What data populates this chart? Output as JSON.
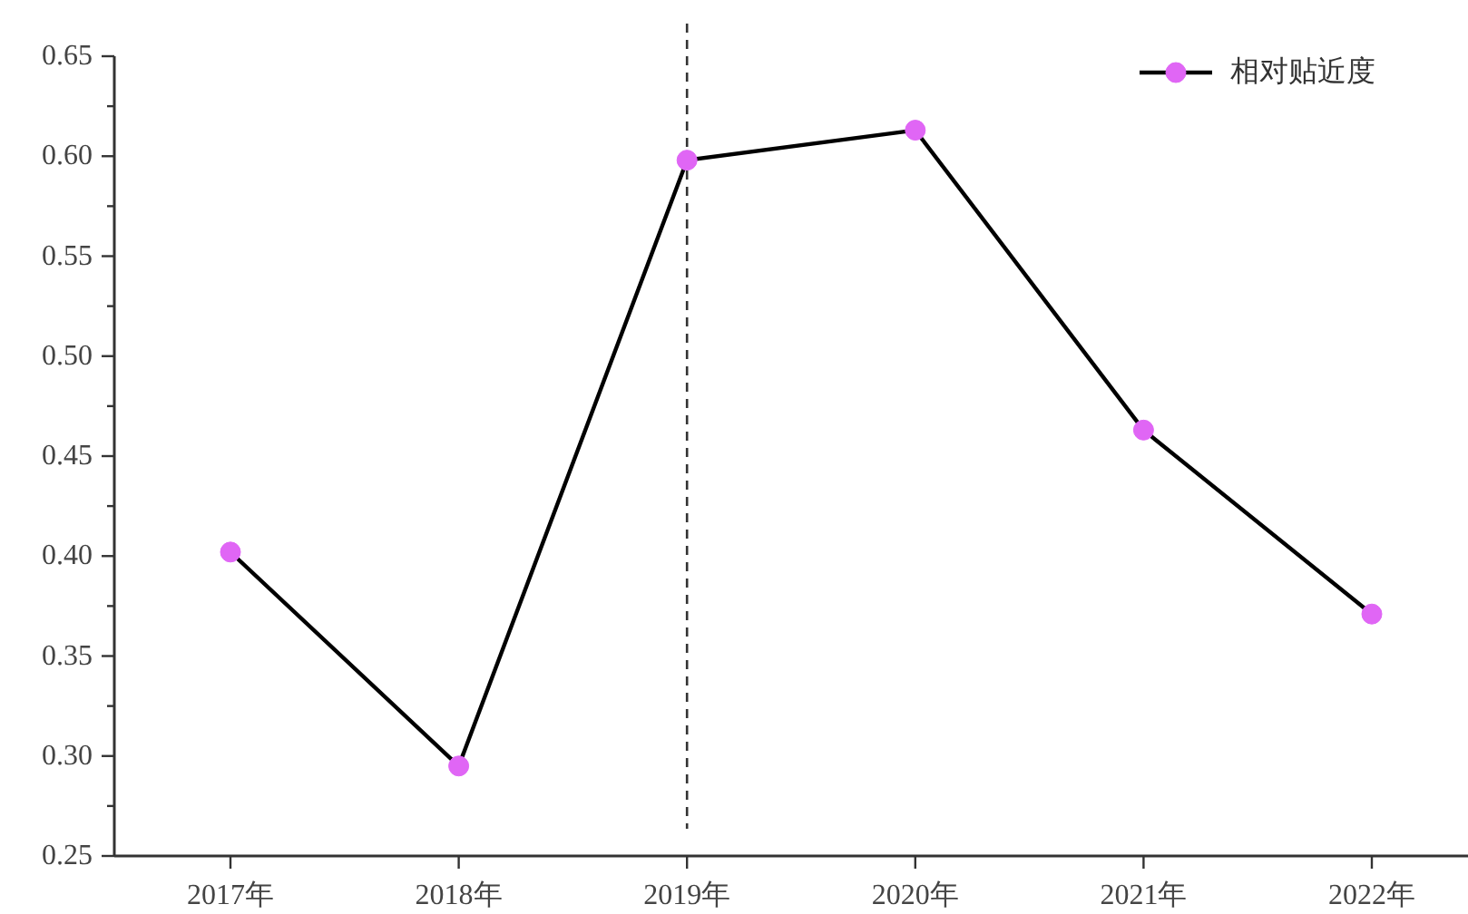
{
  "chart_data": {
    "type": "line",
    "categories": [
      "2017年",
      "2018年",
      "2019年",
      "2020年",
      "2021年",
      "2022年"
    ],
    "series": [
      {
        "name": "相对贴近度",
        "color": "#000000",
        "colors": [
          "#e066f5",
          "#e066f5",
          "#e066f5",
          "#e066f5",
          "#e066f5",
          "#e066f5"
        ],
        "values": [
          0.402,
          0.295,
          0.598,
          0.613,
          0.463,
          0.371
        ]
      }
    ],
    "ylim": [
      0.25,
      0.65
    ],
    "yticks": [
      0.25,
      {
        "value": 0.275,
        "label": null
      },
      {
        "value": 0.3,
        "label": "0.30"
      },
      {
        "value": 0.325,
        "label": null
      },
      0.35,
      {
        "value": 0.375,
        "label": null
      },
      {
        "value": 0.4,
        "label": "0.40"
      },
      {
        "value": 0.425,
        "label": null
      },
      0.45,
      {
        "value": 0.475,
        "label": null
      },
      {
        "value": 0.5,
        "label": "0.50"
      },
      {
        "value": 0.525,
        "label": null
      },
      0.55,
      {
        "value": 0.575,
        "label": null
      },
      {
        "value": 0.6,
        "label": "0.60"
      },
      {
        "value": 0.625,
        "label": null
      },
      0.65
    ],
    "ref_lines": [
      {
        "axis": "x",
        "value": "2019年",
        "color": "#333333",
        "line_style": "dashed"
      }
    ],
    "legend": "top right",
    "marker": "circle",
    "line_style": "solid"
  }
}
